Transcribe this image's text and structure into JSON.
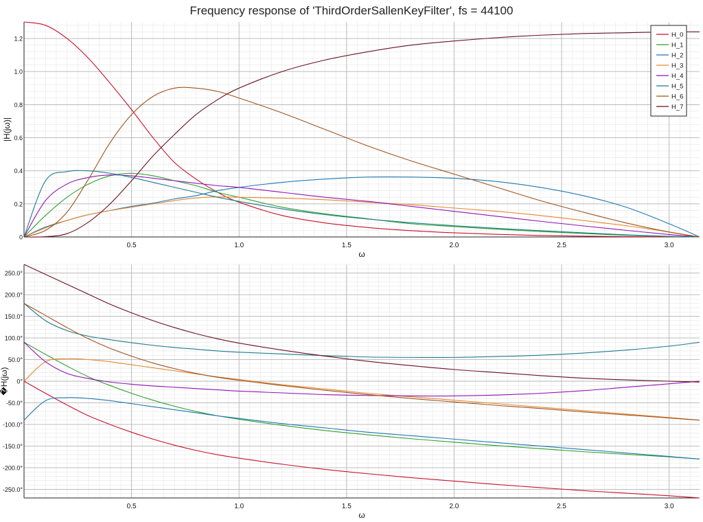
{
  "title": "Frequency response of 'ThirdOrderSallenKeyFilter', fs = 44100",
  "chart_data": [
    {
      "type": "line",
      "title": "",
      "xlabel": "ω",
      "ylabel": "|H(jω)|",
      "xlim": [
        0,
        3.14159
      ],
      "ylim": [
        0,
        1.3
      ],
      "xticks": [
        0.5,
        1.0,
        1.5,
        2.0,
        2.5,
        3.0
      ],
      "xtick_labels": [
        "0.5",
        "1.0",
        "1.5",
        "2.0",
        "2.5",
        "3.0"
      ],
      "yticks": [
        0,
        0.2,
        0.4,
        0.6,
        0.8,
        1.0,
        1.2
      ],
      "ytick_labels": [
        "0",
        "0.2",
        "0.4",
        "0.6",
        "0.8",
        "1.0",
        "1.2"
      ],
      "grid": true,
      "legend": "top-right",
      "x": [
        0,
        0.1,
        0.2,
        0.3,
        0.4,
        0.5,
        0.6,
        0.7,
        0.8,
        0.9,
        1.0,
        1.2,
        1.4,
        1.6,
        1.8,
        2.0,
        2.2,
        2.4,
        2.6,
        2.8,
        3.0,
        3.14159
      ],
      "series": [
        {
          "name": "H_0",
          "color": "#c8102e",
          "values": [
            1.3,
            1.28,
            1.2,
            1.08,
            0.93,
            0.77,
            0.6,
            0.45,
            0.35,
            0.27,
            0.21,
            0.13,
            0.085,
            0.057,
            0.038,
            0.025,
            0.016,
            0.009,
            0.005,
            0.002,
            0.0007,
            0
          ]
        },
        {
          "name": "H_1",
          "color": "#2ca02c",
          "values": [
            0,
            0.13,
            0.24,
            0.32,
            0.37,
            0.385,
            0.37,
            0.34,
            0.31,
            0.27,
            0.24,
            0.18,
            0.14,
            0.11,
            0.08,
            0.063,
            0.047,
            0.033,
            0.021,
            0.01,
            0.003,
            0
          ]
        },
        {
          "name": "H_2",
          "color": "#1f77b4",
          "values": [
            0,
            0.06,
            0.1,
            0.135,
            0.16,
            0.185,
            0.205,
            0.23,
            0.25,
            0.28,
            0.3,
            0.33,
            0.35,
            0.362,
            0.362,
            0.355,
            0.335,
            0.3,
            0.25,
            0.18,
            0.08,
            0
          ]
        },
        {
          "name": "H_3",
          "color": "#e6862d",
          "values": [
            0,
            0.055,
            0.1,
            0.135,
            0.16,
            0.18,
            0.2,
            0.22,
            0.236,
            0.242,
            0.24,
            0.235,
            0.225,
            0.21,
            0.195,
            0.175,
            0.155,
            0.13,
            0.1,
            0.068,
            0.03,
            0
          ]
        },
        {
          "name": "H_4",
          "color": "#8e14b4",
          "values": [
            0,
            0.22,
            0.32,
            0.36,
            0.375,
            0.37,
            0.355,
            0.34,
            0.325,
            0.31,
            0.3,
            0.27,
            0.24,
            0.215,
            0.185,
            0.155,
            0.125,
            0.095,
            0.067,
            0.04,
            0.015,
            0
          ]
        },
        {
          "name": "H_5",
          "color": "#1b7a8c",
          "values": [
            0,
            0.34,
            0.395,
            0.4,
            0.385,
            0.36,
            0.33,
            0.3,
            0.27,
            0.24,
            0.215,
            0.17,
            0.135,
            0.108,
            0.086,
            0.068,
            0.052,
            0.038,
            0.025,
            0.013,
            0.004,
            0
          ]
        },
        {
          "name": "H_6",
          "color": "#a0521c",
          "values": [
            0,
            0.04,
            0.15,
            0.35,
            0.57,
            0.74,
            0.85,
            0.9,
            0.9,
            0.88,
            0.84,
            0.75,
            0.65,
            0.55,
            0.46,
            0.38,
            0.3,
            0.22,
            0.15,
            0.085,
            0.03,
            0
          ]
        },
        {
          "name": "H_7",
          "color": "#6b0f1e",
          "values": [
            0,
            0.002,
            0.02,
            0.09,
            0.2,
            0.34,
            0.49,
            0.62,
            0.74,
            0.83,
            0.9,
            1.0,
            1.07,
            1.12,
            1.16,
            1.185,
            1.205,
            1.22,
            1.23,
            1.235,
            1.24,
            1.24
          ]
        }
      ]
    },
    {
      "type": "line",
      "title": "",
      "xlabel": "ω",
      "ylabel": "�H(jω)",
      "xlim": [
        0,
        3.14159
      ],
      "ylim": [
        -270,
        270
      ],
      "xticks": [
        0.5,
        1.0,
        1.5,
        2.0,
        2.5,
        3.0
      ],
      "xtick_labels": [
        "0.5",
        "1.0",
        "1.5",
        "2.0",
        "2.5",
        "3.0"
      ],
      "yticks": [
        -250,
        -200,
        -150,
        -100,
        -50,
        0,
        50,
        100,
        150,
        200,
        250
      ],
      "ytick_labels": [
        "-250.0°",
        "-200.0°",
        "-150.0°",
        "-100.0°",
        "-50.0°",
        "0°",
        "50.0°",
        "100.0°",
        "150.0°",
        "200.0°",
        "250.0°"
      ],
      "grid": true,
      "x": [
        0,
        0.1,
        0.2,
        0.3,
        0.4,
        0.5,
        0.6,
        0.7,
        0.8,
        0.9,
        1.0,
        1.2,
        1.4,
        1.6,
        1.8,
        2.0,
        2.2,
        2.4,
        2.6,
        2.8,
        3.0,
        3.14159
      ],
      "series": [
        {
          "name": "H_0",
          "color": "#c8102e",
          "values": [
            0,
            -28,
            -55,
            -80,
            -100,
            -118,
            -134,
            -148,
            -160,
            -170,
            -178,
            -192,
            -204,
            -214,
            -223,
            -231,
            -239,
            -246,
            -253,
            -259,
            -265,
            -270
          ]
        },
        {
          "name": "H_1",
          "color": "#2ca02c",
          "values": [
            90,
            62,
            35,
            10,
            -10,
            -28,
            -44,
            -58,
            -70,
            -80,
            -88,
            -102,
            -114,
            -124,
            -133,
            -141,
            -149,
            -156,
            -163,
            -169,
            -175,
            -180
          ]
        },
        {
          "name": "H_2",
          "color": "#1f77b4",
          "values": [
            -90,
            -45,
            -38,
            -40,
            -45,
            -52,
            -59,
            -66,
            -73,
            -80,
            -86,
            -98,
            -108,
            -118,
            -126,
            -134,
            -142,
            -150,
            -158,
            -166,
            -174,
            -180
          ]
        },
        {
          "name": "H_3",
          "color": "#e6862d",
          "values": [
            0,
            45,
            52,
            50,
            45,
            38,
            31,
            24,
            17,
            10,
            4,
            -8,
            -18,
            -28,
            -36,
            -44,
            -52,
            -60,
            -68,
            -76,
            -84,
            -90
          ]
        },
        {
          "name": "H_4",
          "color": "#8e14b4",
          "values": [
            90,
            45,
            18,
            6,
            -2,
            -7,
            -11,
            -14,
            -17,
            -20,
            -23,
            -27,
            -31,
            -33,
            -34,
            -34,
            -32,
            -28,
            -22,
            -14,
            -6,
            0
          ]
        },
        {
          "name": "H_5",
          "color": "#1b7a8c",
          "values": [
            180,
            140,
            117,
            104,
            96,
            89,
            83,
            78,
            74,
            70,
            67,
            63,
            59,
            56,
            55,
            55,
            57,
            60,
            65,
            72,
            81,
            90
          ]
        },
        {
          "name": "H_6",
          "color": "#a0521c",
          "values": [
            180,
            152,
            124,
            98,
            76,
            58,
            42,
            29,
            18,
            9,
            2,
            -10,
            -21,
            -31,
            -40,
            -48,
            -56,
            -63,
            -71,
            -78,
            -85,
            -90
          ]
        },
        {
          "name": "H_7",
          "color": "#6b0f1e",
          "values": [
            270,
            247,
            224,
            201,
            178,
            158,
            140,
            124,
            110,
            98,
            88,
            72,
            58,
            46,
            36,
            27,
            20,
            13,
            7,
            3,
            0,
            -2
          ]
        }
      ]
    }
  ]
}
